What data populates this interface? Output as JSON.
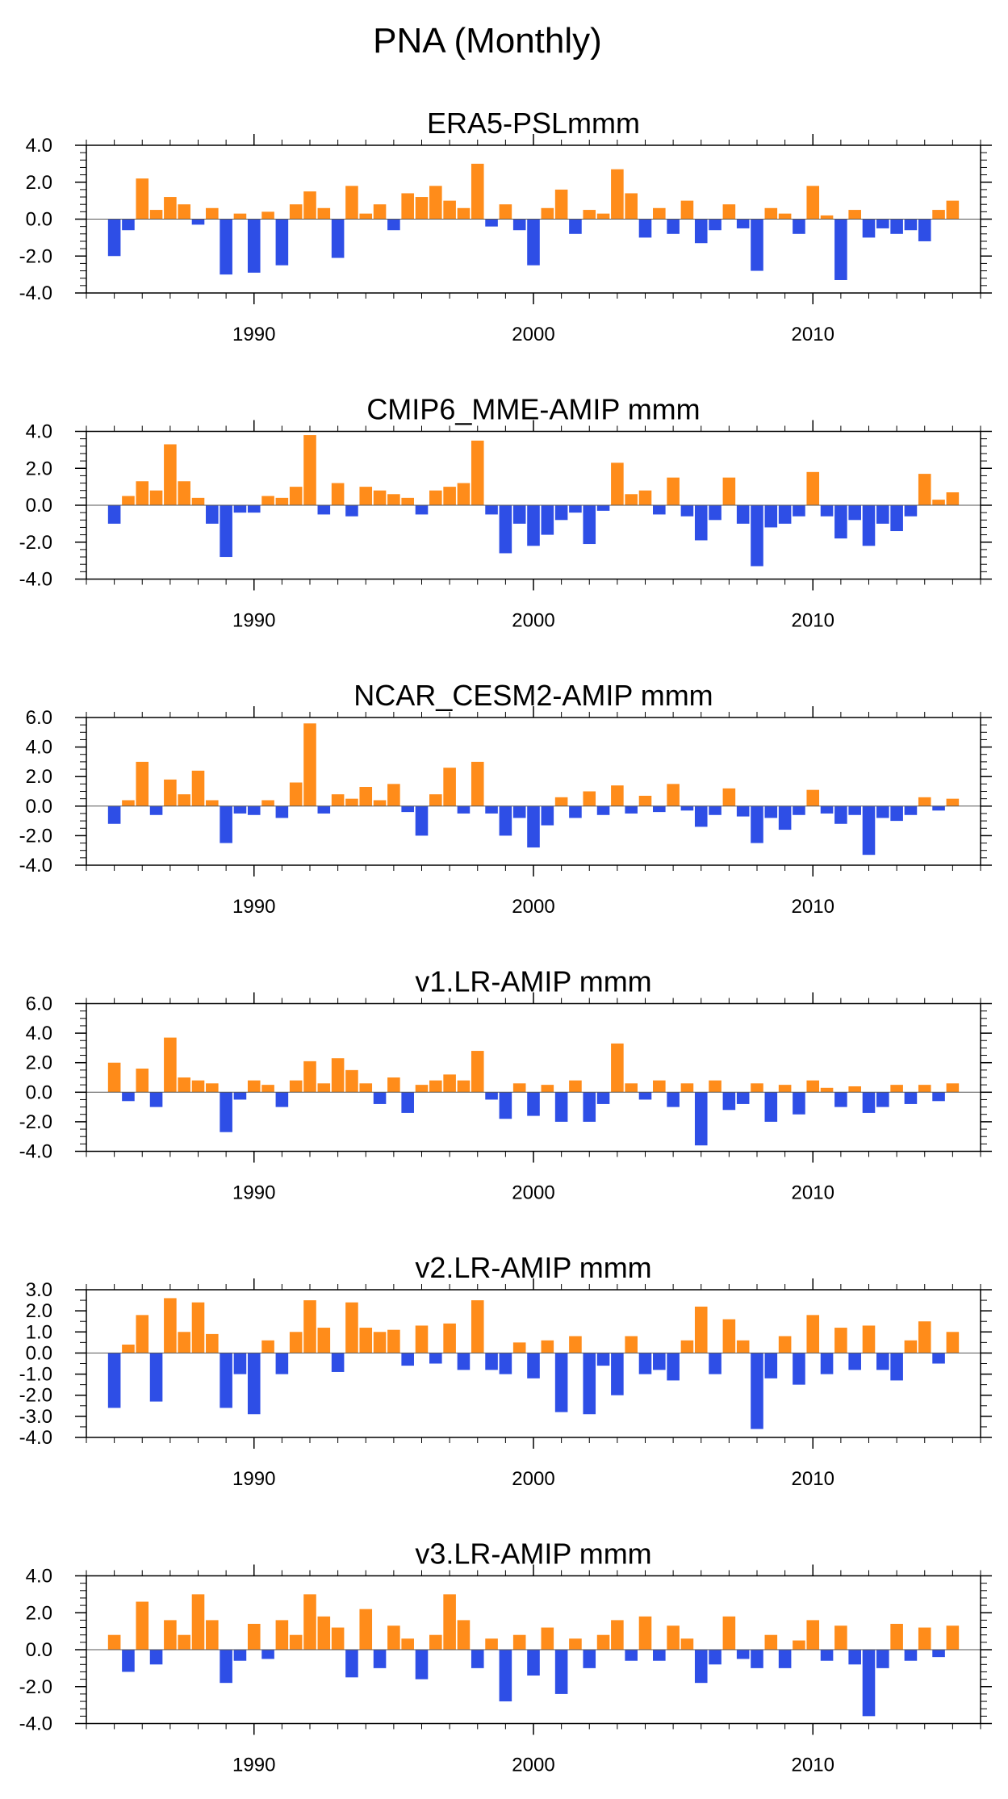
{
  "figure_title": "PNA (Monthly)",
  "colors": {
    "positive": "#ff8c1a",
    "negative": "#2e4ee6",
    "axis": "#000000"
  },
  "x_ticks": [
    1990,
    2000,
    2010
  ],
  "chart_data": [
    {
      "type": "area",
      "title": "ERA5-PSLmmm",
      "xlim": [
        1984.0,
        2016.0
      ],
      "ylim": [
        -4,
        4
      ],
      "yticks": [
        "4.0",
        "2.0",
        "0.0",
        "-2.0",
        "-4.0"
      ],
      "ytick_values": [
        4,
        2,
        0,
        -2,
        -4
      ],
      "x": [
        1985,
        1985.5,
        1986,
        1986.5,
        1987,
        1987.5,
        1988,
        1988.5,
        1989,
        1989.5,
        1990,
        1990.5,
        1991,
        1991.5,
        1992,
        1992.5,
        1993,
        1993.5,
        1994,
        1994.5,
        1995,
        1995.5,
        1996,
        1996.5,
        1997,
        1997.5,
        1998,
        1998.5,
        1999,
        1999.5,
        2000,
        2000.5,
        2001,
        2001.5,
        2002,
        2002.5,
        2003,
        2003.5,
        2004,
        2004.5,
        2005,
        2005.5,
        2006,
        2006.5,
        2007,
        2007.5,
        2008,
        2008.5,
        2009,
        2009.5,
        2010,
        2010.5,
        2011,
        2011.5,
        2012,
        2012.5,
        2013,
        2013.5,
        2014,
        2014.5,
        2015
      ],
      "values": [
        -2.0,
        -0.6,
        2.2,
        0.5,
        1.2,
        0.8,
        -0.3,
        0.6,
        -3.0,
        0.3,
        -2.9,
        0.4,
        -2.5,
        0.8,
        1.5,
        0.6,
        -2.1,
        1.8,
        0.3,
        0.8,
        -0.6,
        1.4,
        1.2,
        1.8,
        1.0,
        0.6,
        3.0,
        -0.4,
        0.8,
        -0.6,
        -2.5,
        0.6,
        1.6,
        -0.8,
        0.5,
        0.3,
        2.7,
        1.4,
        -1.0,
        0.6,
        -0.8,
        1.0,
        -1.3,
        -0.6,
        0.8,
        -0.5,
        -2.8,
        0.6,
        0.3,
        -0.8,
        1.8,
        0.2,
        -3.3,
        0.5,
        -1.0,
        -0.5,
        -0.8,
        -0.6,
        -1.2,
        0.5,
        1.0
      ]
    },
    {
      "type": "area",
      "title": "CMIP6_MME-AMIP  mmm",
      "xlim": [
        1984.0,
        2016.0
      ],
      "ylim": [
        -4,
        4
      ],
      "yticks": [
        "4.0",
        "2.0",
        "0.0",
        "-2.0",
        "-4.0"
      ],
      "ytick_values": [
        4,
        2,
        0,
        -2,
        -4
      ],
      "x": [
        1985,
        1985.5,
        1986,
        1986.5,
        1987,
        1987.5,
        1988,
        1988.5,
        1989,
        1989.5,
        1990,
        1990.5,
        1991,
        1991.5,
        1992,
        1992.5,
        1993,
        1993.5,
        1994,
        1994.5,
        1995,
        1995.5,
        1996,
        1996.5,
        1997,
        1997.5,
        1998,
        1998.5,
        1999,
        1999.5,
        2000,
        2000.5,
        2001,
        2001.5,
        2002,
        2002.5,
        2003,
        2003.5,
        2004,
        2004.5,
        2005,
        2005.5,
        2006,
        2006.5,
        2007,
        2007.5,
        2008,
        2008.5,
        2009,
        2009.5,
        2010,
        2010.5,
        2011,
        2011.5,
        2012,
        2012.5,
        2013,
        2013.5,
        2014,
        2014.5,
        2015
      ],
      "values": [
        -1.0,
        0.5,
        1.3,
        0.8,
        3.3,
        1.3,
        0.4,
        -1.0,
        -2.8,
        -0.4,
        -0.4,
        0.5,
        0.4,
        1.0,
        3.8,
        -0.5,
        1.2,
        -0.6,
        1.0,
        0.8,
        0.6,
        0.4,
        -0.5,
        0.8,
        1.0,
        1.2,
        3.5,
        -0.5,
        -2.6,
        -1.0,
        -2.2,
        -1.6,
        -0.8,
        -0.4,
        -2.1,
        -0.3,
        2.3,
        0.6,
        0.8,
        -0.5,
        1.5,
        -0.6,
        -1.9,
        -0.8,
        1.5,
        -1.0,
        -3.3,
        -1.2,
        -1.0,
        -0.6,
        1.8,
        -0.6,
        -1.8,
        -0.8,
        -2.2,
        -1.0,
        -1.4,
        -0.6,
        1.7,
        0.3,
        0.7
      ]
    },
    {
      "type": "area",
      "title": "NCAR_CESM2-AMIP  mmm",
      "xlim": [
        1984.0,
        2016.0
      ],
      "ylim": [
        -4,
        6
      ],
      "yticks": [
        "6.0",
        "4.0",
        "2.0",
        "0.0",
        "-2.0",
        "-4.0"
      ],
      "ytick_values": [
        6,
        4,
        2,
        0,
        -2,
        -4
      ],
      "x": [
        1985,
        1985.5,
        1986,
        1986.5,
        1987,
        1987.5,
        1988,
        1988.5,
        1989,
        1989.5,
        1990,
        1990.5,
        1991,
        1991.5,
        1992,
        1992.5,
        1993,
        1993.5,
        1994,
        1994.5,
        1995,
        1995.5,
        1996,
        1996.5,
        1997,
        1997.5,
        1998,
        1998.5,
        1999,
        1999.5,
        2000,
        2000.5,
        2001,
        2001.5,
        2002,
        2002.5,
        2003,
        2003.5,
        2004,
        2004.5,
        2005,
        2005.5,
        2006,
        2006.5,
        2007,
        2007.5,
        2008,
        2008.5,
        2009,
        2009.5,
        2010,
        2010.5,
        2011,
        2011.5,
        2012,
        2012.5,
        2013,
        2013.5,
        2014,
        2014.5,
        2015
      ],
      "values": [
        -1.2,
        0.4,
        3.0,
        -0.6,
        1.8,
        0.8,
        2.4,
        0.4,
        -2.5,
        -0.5,
        -0.6,
        0.4,
        -0.8,
        1.6,
        5.6,
        -0.5,
        0.8,
        0.5,
        1.3,
        0.4,
        1.5,
        -0.4,
        -2.0,
        0.8,
        2.6,
        -0.5,
        3.0,
        -0.5,
        -2.0,
        -0.8,
        -2.8,
        -1.3,
        0.6,
        -0.8,
        1.0,
        -0.6,
        1.4,
        -0.5,
        0.7,
        -0.4,
        1.5,
        -0.3,
        -1.4,
        -0.6,
        1.2,
        -0.7,
        -2.5,
        -0.8,
        -1.6,
        -0.6,
        1.1,
        -0.5,
        -1.2,
        -0.6,
        -3.3,
        -0.8,
        -1.0,
        -0.6,
        0.6,
        -0.3,
        0.5
      ]
    },
    {
      "type": "area",
      "title": "v1.LR-AMIP  mmm",
      "xlim": [
        1984.0,
        2016.0
      ],
      "ylim": [
        -4,
        6
      ],
      "yticks": [
        "6.0",
        "4.0",
        "2.0",
        "0.0",
        "-2.0",
        "-4.0"
      ],
      "ytick_values": [
        6,
        4,
        2,
        0,
        -2,
        -4
      ],
      "x": [
        1985,
        1985.5,
        1986,
        1986.5,
        1987,
        1987.5,
        1988,
        1988.5,
        1989,
        1989.5,
        1990,
        1990.5,
        1991,
        1991.5,
        1992,
        1992.5,
        1993,
        1993.5,
        1994,
        1994.5,
        1995,
        1995.5,
        1996,
        1996.5,
        1997,
        1997.5,
        1998,
        1998.5,
        1999,
        1999.5,
        2000,
        2000.5,
        2001,
        2001.5,
        2002,
        2002.5,
        2003,
        2003.5,
        2004,
        2004.5,
        2005,
        2005.5,
        2006,
        2006.5,
        2007,
        2007.5,
        2008,
        2008.5,
        2009,
        2009.5,
        2010,
        2010.5,
        2011,
        2011.5,
        2012,
        2012.5,
        2013,
        2013.5,
        2014,
        2014.5,
        2015
      ],
      "values": [
        2.0,
        -0.6,
        1.6,
        -1.0,
        3.7,
        1.0,
        0.8,
        0.6,
        -2.7,
        -0.5,
        0.8,
        0.5,
        -1.0,
        0.8,
        2.1,
        0.6,
        2.3,
        1.5,
        0.6,
        -0.8,
        1.0,
        -1.4,
        0.5,
        0.8,
        1.2,
        0.8,
        2.8,
        -0.5,
        -1.8,
        0.6,
        -1.6,
        0.5,
        -2.0,
        0.8,
        -2.0,
        -0.8,
        3.3,
        0.6,
        -0.5,
        0.8,
        -1.0,
        0.6,
        -3.6,
        0.8,
        -1.2,
        -0.8,
        0.6,
        -2.0,
        0.5,
        -1.5,
        0.8,
        0.3,
        -1.0,
        0.4,
        -1.4,
        -1.0,
        0.5,
        -0.8,
        0.5,
        -0.6,
        0.6
      ]
    },
    {
      "type": "area",
      "title": "v2.LR-AMIP  mmm",
      "xlim": [
        1984.0,
        2016.0
      ],
      "ylim": [
        -4,
        3
      ],
      "yticks": [
        "3.0",
        "2.0",
        "1.0",
        "0.0",
        "-1.0",
        "-2.0",
        "-3.0",
        "-4.0"
      ],
      "ytick_values": [
        3,
        2,
        1,
        0,
        -1,
        -2,
        -3,
        -4
      ],
      "x": [
        1985,
        1985.5,
        1986,
        1986.5,
        1987,
        1987.5,
        1988,
        1988.5,
        1989,
        1989.5,
        1990,
        1990.5,
        1991,
        1991.5,
        1992,
        1992.5,
        1993,
        1993.5,
        1994,
        1994.5,
        1995,
        1995.5,
        1996,
        1996.5,
        1997,
        1997.5,
        1998,
        1998.5,
        1999,
        1999.5,
        2000,
        2000.5,
        2001,
        2001.5,
        2002,
        2002.5,
        2003,
        2003.5,
        2004,
        2004.5,
        2005,
        2005.5,
        2006,
        2006.5,
        2007,
        2007.5,
        2008,
        2008.5,
        2009,
        2009.5,
        2010,
        2010.5,
        2011,
        2011.5,
        2012,
        2012.5,
        2013,
        2013.5,
        2014,
        2014.5,
        2015
      ],
      "values": [
        -2.6,
        0.4,
        1.8,
        -2.3,
        2.6,
        1.0,
        2.4,
        0.9,
        -2.6,
        -1.0,
        -2.9,
        0.6,
        -1.0,
        1.0,
        2.5,
        1.2,
        -0.9,
        2.4,
        1.2,
        1.0,
        1.1,
        -0.6,
        1.3,
        -0.5,
        1.4,
        -0.8,
        2.5,
        -0.8,
        -1.0,
        0.5,
        -1.2,
        0.6,
        -2.8,
        0.8,
        -2.9,
        -0.6,
        -2.0,
        0.8,
        -1.0,
        -0.8,
        -1.3,
        0.6,
        2.2,
        -1.0,
        1.6,
        0.6,
        -3.6,
        -1.2,
        0.8,
        -1.5,
        1.8,
        -1.0,
        1.2,
        -0.8,
        1.3,
        -0.8,
        -1.3,
        0.6,
        1.5,
        -0.5,
        1.0
      ]
    },
    {
      "type": "area",
      "title": "v3.LR-AMIP  mmm",
      "xlim": [
        1984.0,
        2016.0
      ],
      "ylim": [
        -4,
        4
      ],
      "yticks": [
        "4.0",
        "2.0",
        "0.0",
        "-2.0",
        "-4.0"
      ],
      "ytick_values": [
        4,
        2,
        0,
        -2,
        -4
      ],
      "x": [
        1985,
        1985.5,
        1986,
        1986.5,
        1987,
        1987.5,
        1988,
        1988.5,
        1989,
        1989.5,
        1990,
        1990.5,
        1991,
        1991.5,
        1992,
        1992.5,
        1993,
        1993.5,
        1994,
        1994.5,
        1995,
        1995.5,
        1996,
        1996.5,
        1997,
        1997.5,
        1998,
        1998.5,
        1999,
        1999.5,
        2000,
        2000.5,
        2001,
        2001.5,
        2002,
        2002.5,
        2003,
        2003.5,
        2004,
        2004.5,
        2005,
        2005.5,
        2006,
        2006.5,
        2007,
        2007.5,
        2008,
        2008.5,
        2009,
        2009.5,
        2010,
        2010.5,
        2011,
        2011.5,
        2012,
        2012.5,
        2013,
        2013.5,
        2014,
        2014.5,
        2015
      ],
      "values": [
        0.8,
        -1.2,
        2.6,
        -0.8,
        1.6,
        0.8,
        3.0,
        1.6,
        -1.8,
        -0.6,
        1.4,
        -0.5,
        1.6,
        0.8,
        3.0,
        1.8,
        1.2,
        -1.5,
        2.2,
        -1.0,
        1.3,
        0.6,
        -1.6,
        0.8,
        3.0,
        1.6,
        -1.0,
        0.6,
        -2.8,
        0.8,
        -1.4,
        1.2,
        -2.4,
        0.6,
        -1.0,
        0.8,
        1.6,
        -0.6,
        1.8,
        -0.6,
        1.3,
        0.6,
        -1.8,
        -0.8,
        1.8,
        -0.5,
        -1.0,
        0.8,
        -1.0,
        0.5,
        1.6,
        -0.6,
        1.3,
        -0.8,
        -3.6,
        -1.0,
        1.4,
        -0.6,
        1.2,
        -0.4,
        1.3
      ]
    }
  ]
}
